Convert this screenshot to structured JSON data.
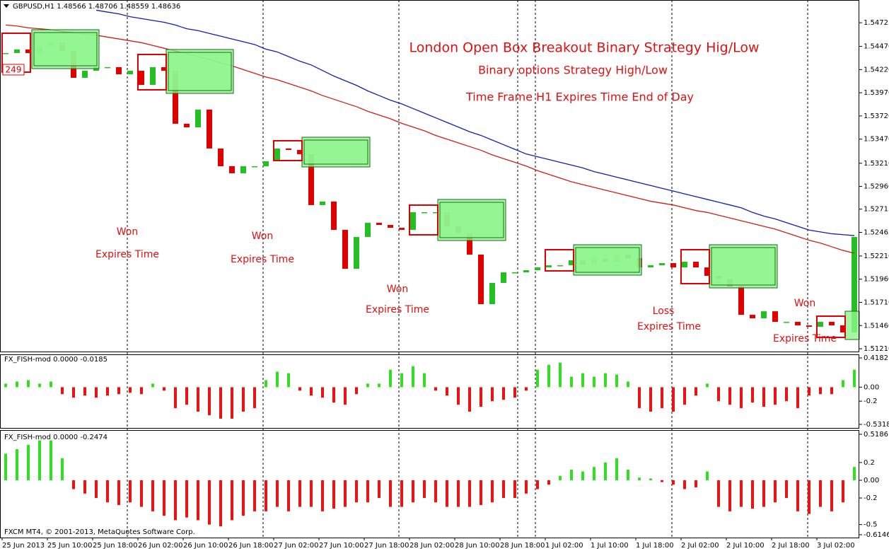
{
  "chart_data": [
    {
      "type": "candlestick",
      "header": "GBPUSD,H1  1.48566 1.48706 1.48559 1.48636",
      "badge": "249",
      "title": "London Open Box Breakout Binary Strategy Hig/Low",
      "subtitle": "Binary options Strategy High/Low",
      "subtitle2": "Time Frame H1 Expires Time End of Day",
      "annotations": [
        "Won",
        "Expires Time",
        "Won",
        "Expires Time",
        "Won",
        "Expires Time",
        "Loss",
        "Expires Time",
        "Won",
        "Expires Time"
      ],
      "footer": "FXCM MT4, © 2001-2013, MetaQuotes Software Corp.",
      "x_labels": [
        "25 Jun 2013",
        "25 Jun 10:00",
        "25 Jun 18:00",
        "26 Jun 02:00",
        "26 Jun 10:00",
        "26 Jun 18:00",
        "27 Jun 02:00",
        "27 Jun 10:00",
        "27 Jun 18:00",
        "28 Jun 02:00",
        "28 Jun 10:00",
        "28 Jun 18:00",
        "1 Jul 02:00",
        "1 Jul 10:00",
        "1 Jul 18:00",
        "2 Jul 02:00",
        "2 Jul 10:00",
        "2 Jul 18:00",
        "3 Jul 02:00"
      ],
      "up_color": "#22c022",
      "down_color": "#e00000",
      "values": [
        1.54398,
        1.54436,
        1.54398,
        1.54474,
        1.54512,
        1.54421,
        1.54131,
        1.54207,
        1.54246,
        1.54246,
        1.54169,
        1.54207,
        1.54055,
        1.54246,
        1.54207,
        1.53636,
        1.53597,
        1.53788,
        1.53369,
        1.53178,
        1.53102,
        1.53178,
        1.53178,
        1.53231,
        1.53369,
        1.53353,
        1.53308,
        1.52759,
        1.52797,
        1.52492,
        1.52072,
        1.52415,
        1.52568,
        1.52545,
        1.52514,
        1.52492,
        1.52682,
        1.52682,
        1.52682,
        1.5253,
        1.52454,
        1.52225,
        1.51691,
        1.5192,
        1.52034,
        1.52034,
        1.52057,
        1.52087,
        1.5211,
        1.5211,
        1.52164,
        1.5211,
        1.52187,
        1.52148,
        1.52225,
        1.52187,
        1.52087,
        1.5211,
        1.52133,
        1.52087,
        1.52148,
        1.52087,
        1.51996,
        1.51958,
        1.51881,
        1.51576,
        1.51538,
        1.51614,
        1.515,
        1.515,
        1.51462,
        1.51447,
        1.515,
        1.51462,
        1.51386,
        1.52415
      ],
      "series": [
        {
          "color": "#1020b0",
          "values": [
            null,
            null,
            null,
            null,
            null,
            null,
            null,
            null,
            1.5486,
            1.5484,
            1.5482,
            1.5479,
            1.5477,
            1.5475,
            1.5473,
            1.547,
            1.5466,
            1.5464,
            1.5461,
            1.5458,
            1.5455,
            1.5452,
            1.5449,
            1.5444,
            1.5441,
            1.5436,
            1.5431,
            1.5427,
            1.5421,
            1.5415,
            1.541,
            1.5405,
            1.5399,
            1.5394,
            1.5389,
            1.5385,
            1.538,
            1.5375,
            1.537,
            1.5365,
            1.536,
            1.5355,
            1.5351,
            1.5346,
            1.5341,
            1.5336,
            1.5331,
            1.5328,
            1.5325,
            1.5322,
            1.5319,
            1.5316,
            1.5312,
            1.5309,
            1.5306,
            1.5303,
            1.53,
            1.5297,
            1.5294,
            1.5291,
            1.5288,
            1.5285,
            1.5282,
            1.5279,
            1.5276,
            1.5273,
            1.5268,
            1.5264,
            1.5261,
            1.5257,
            1.5253,
            1.5249,
            1.5247,
            1.5245,
            1.5244,
            1.5243
          ]
        },
        {
          "color": "#d02010",
          "values": [
            1.547,
            1.5469,
            1.5467,
            1.5466,
            1.5465,
            1.5463,
            1.5462,
            1.546,
            1.5459,
            1.5457,
            1.5455,
            1.5453,
            1.5451,
            1.5448,
            1.5445,
            1.5442,
            1.5439,
            1.5436,
            1.5433,
            1.5429,
            1.5426,
            1.5422,
            1.5418,
            1.5414,
            1.5411,
            1.5407,
            1.5403,
            1.5399,
            1.5394,
            1.539,
            1.5386,
            1.5382,
            1.5377,
            1.5373,
            1.5369,
            1.5364,
            1.536,
            1.5356,
            1.5351,
            1.5347,
            1.5343,
            1.5339,
            1.5335,
            1.533,
            1.5326,
            1.5322,
            1.5318,
            1.5313,
            1.5309,
            1.5305,
            1.5301,
            1.5298,
            1.5295,
            1.5292,
            1.5289,
            1.5286,
            1.5283,
            1.528,
            1.5278,
            1.5276,
            1.5273,
            1.527,
            1.5268,
            1.5265,
            1.5262,
            1.5259,
            1.5256,
            1.5253,
            1.525,
            1.5246,
            1.5242,
            1.5238,
            1.5235,
            1.5231,
            1.5227,
            1.5224
          ]
        }
      ],
      "ylim": [
        1.5118,
        1.5497
      ],
      "yticks": [
        1.54725,
        {
          "value": 1.5447,
          "label": "1.54470"
        },
        {
          "value": 1.5422,
          "label": "1.54220"
        },
        {
          "value": 1.5397,
          "label": "1.53970"
        },
        {
          "value": 1.5372,
          "label": "1.53720"
        },
        {
          "value": 1.5347,
          "label": "1.53470"
        },
        {
          "value": 1.5321,
          "label": "1.53210"
        },
        {
          "value": 1.5296,
          "label": "1.52960"
        },
        1.52715,
        1.52465,
        {
          "value": 1.5221,
          "label": "1.52210"
        },
        {
          "value": 1.5196,
          "label": "1.51960"
        },
        {
          "value": 1.5171,
          "label": "1.51710"
        },
        {
          "value": 1.5146,
          "label": "1.51460"
        },
        {
          "value": 1.5121,
          "label": "1.51210"
        }
      ]
    },
    {
      "type": "bar",
      "label": "FX_FISH-mod 0.0000 -0.0185",
      "up_color": "#33dd22",
      "down_color": "#ee1111",
      "values": [
        0.05,
        0.08,
        0.1,
        0.05,
        0.08,
        -0.1,
        -0.15,
        -0.12,
        -0.15,
        -0.12,
        -0.1,
        -0.08,
        -0.1,
        0.05,
        -0.05,
        -0.3,
        -0.25,
        -0.35,
        -0.4,
        -0.45,
        -0.45,
        -0.35,
        -0.3,
        0.1,
        0.22,
        0.2,
        -0.05,
        -0.12,
        -0.15,
        -0.22,
        -0.25,
        -0.1,
        0.05,
        0.05,
        0.25,
        0.2,
        0.3,
        0.2,
        -0.05,
        -0.12,
        -0.25,
        -0.35,
        -0.28,
        -0.2,
        -0.18,
        -0.15,
        -0.05,
        0.25,
        0.32,
        0.35,
        0.15,
        0.2,
        0.15,
        0.2,
        0.18,
        0.08,
        -0.3,
        -0.35,
        -0.3,
        -0.35,
        -0.25,
        -0.12,
        0.05,
        -0.2,
        -0.25,
        -0.3,
        -0.22,
        -0.28,
        -0.25,
        -0.2,
        -0.3,
        -0.12,
        -0.1,
        -0.1,
        0.1,
        0.25
      ],
      "ylim": [
        -0.5318,
        0.4182
      ],
      "yticks": [
        0.4182,
        {
          "value": 0,
          "label": "0.00"
        },
        -0.2,
        -0.5318
      ]
    },
    {
      "type": "bar",
      "label": "FX_FISH-mod 0.0000 -0.2474",
      "up_color": "#33dd22",
      "down_color": "#ee1111",
      "values": [
        0.3,
        0.35,
        0.4,
        0.45,
        0.45,
        0.25,
        -0.1,
        -0.15,
        -0.2,
        -0.25,
        -0.28,
        -0.25,
        -0.3,
        -0.35,
        -0.4,
        -0.45,
        -0.42,
        -0.45,
        -0.5,
        -0.52,
        -0.45,
        -0.4,
        -0.35,
        -0.35,
        -0.3,
        -0.35,
        -0.3,
        -0.3,
        -0.35,
        -0.32,
        -0.3,
        -0.25,
        -0.25,
        -0.2,
        -0.3,
        -0.3,
        -0.25,
        -0.2,
        -0.25,
        -0.3,
        -0.3,
        -0.3,
        -0.28,
        -0.25,
        -0.2,
        -0.2,
        -0.15,
        -0.1,
        -0.05,
        0.05,
        0.12,
        0.1,
        0.15,
        0.2,
        0.25,
        0.12,
        0.03,
        0.02,
        -0.02,
        -0.05,
        -0.1,
        -0.08,
        0.1,
        -0.3,
        -0.35,
        -0.3,
        -0.32,
        -0.3,
        -0.25,
        -0.2,
        -0.35,
        -0.38,
        -0.3,
        -0.35,
        -0.25,
        0.15
      ],
      "ylim": [
        -0.6146,
        0.5186
      ],
      "yticks": [
        0.5186,
        0.2,
        {
          "value": 0,
          "label": "0.00"
        },
        -0.2,
        -0.5,
        -0.6146
      ]
    }
  ]
}
